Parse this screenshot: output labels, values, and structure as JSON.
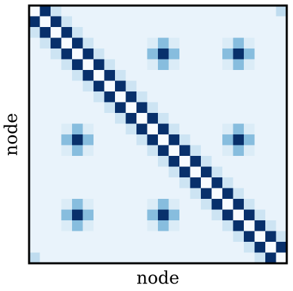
{
  "chart_data": {
    "type": "heatmap",
    "xlabel": "node",
    "ylabel": "node",
    "colormap": [
      "#f7fbff",
      "#6baed6",
      "#08306b"
    ],
    "zlim": [
      0,
      1
    ],
    "values": [
      [
        0,
        1,
        0.15,
        0.05,
        0.05,
        0.05,
        0.05,
        0.05,
        0.05,
        0.05,
        0.05,
        0.05,
        0.05,
        0.05,
        0.05,
        0.05,
        0.05,
        0.05,
        0.05,
        0.05,
        0.05,
        0.05,
        0.05,
        0.2
      ],
      [
        1,
        0,
        1,
        0.15,
        0.05,
        0.05,
        0.05,
        0.05,
        0.05,
        0.05,
        0.05,
        0.05,
        0.05,
        0.05,
        0.05,
        0.05,
        0.05,
        0.05,
        0.05,
        0.05,
        0.05,
        0.05,
        0.05,
        0.05
      ],
      [
        0.15,
        1,
        0,
        1,
        0.15,
        0.05,
        0.05,
        0.05,
        0.05,
        0.05,
        0.05,
        0.05,
        0.05,
        0.05,
        0.05,
        0.05,
        0.05,
        0.05,
        0.05,
        0.05,
        0.05,
        0.05,
        0.05,
        0.05
      ],
      [
        0.05,
        0.15,
        1,
        0,
        1,
        0.15,
        0.05,
        0.05,
        0.05,
        0.05,
        0.05,
        0.1,
        0.4,
        0.1,
        0.05,
        0.05,
        0.05,
        0.05,
        0.1,
        0.4,
        0.1,
        0.05,
        0.05,
        0.05
      ],
      [
        0.05,
        0.05,
        0.15,
        1,
        0,
        1,
        0.15,
        0.05,
        0.05,
        0.05,
        0.05,
        0.4,
        1,
        0.4,
        0.05,
        0.05,
        0.05,
        0.05,
        0.4,
        1,
        0.4,
        0.05,
        0.05,
        0.05
      ],
      [
        0.05,
        0.05,
        0.05,
        0.15,
        1,
        0,
        1,
        0.15,
        0.05,
        0.05,
        0.05,
        0.1,
        0.4,
        0.1,
        0.05,
        0.05,
        0.05,
        0.05,
        0.1,
        0.4,
        0.1,
        0.05,
        0.05,
        0.05
      ],
      [
        0.05,
        0.05,
        0.05,
        0.05,
        0.15,
        1,
        0,
        1,
        0.15,
        0.05,
        0.05,
        0.05,
        0.05,
        0.05,
        0.05,
        0.05,
        0.05,
        0.05,
        0.05,
        0.05,
        0.05,
        0.05,
        0.05,
        0.05
      ],
      [
        0.05,
        0.05,
        0.05,
        0.05,
        0.05,
        0.15,
        1,
        0,
        1,
        0.15,
        0.05,
        0.05,
        0.05,
        0.05,
        0.05,
        0.05,
        0.05,
        0.05,
        0.05,
        0.05,
        0.05,
        0.05,
        0.05,
        0.05
      ],
      [
        0.05,
        0.05,
        0.05,
        0.05,
        0.05,
        0.05,
        0.15,
        1,
        0,
        1,
        0.15,
        0.05,
        0.05,
        0.05,
        0.05,
        0.05,
        0.05,
        0.05,
        0.05,
        0.05,
        0.05,
        0.05,
        0.05,
        0.05
      ],
      [
        0.05,
        0.05,
        0.05,
        0.05,
        0.05,
        0.05,
        0.05,
        0.15,
        1,
        0,
        1,
        0.15,
        0.05,
        0.05,
        0.05,
        0.05,
        0.05,
        0.05,
        0.05,
        0.05,
        0.05,
        0.05,
        0.05,
        0.05
      ],
      [
        0.05,
        0.05,
        0.05,
        0.05,
        0.05,
        0.05,
        0.05,
        0.05,
        0.15,
        1,
        0,
        1,
        0.15,
        0.05,
        0.05,
        0.05,
        0.05,
        0.05,
        0.05,
        0.05,
        0.05,
        0.05,
        0.05,
        0.05
      ],
      [
        0.05,
        0.05,
        0.05,
        0.1,
        0.4,
        0.1,
        0.05,
        0.05,
        0.05,
        0.15,
        1,
        0,
        1,
        0.15,
        0.05,
        0.05,
        0.05,
        0.05,
        0.1,
        0.4,
        0.1,
        0.05,
        0.05,
        0.05
      ],
      [
        0.05,
        0.05,
        0.05,
        0.4,
        1,
        0.4,
        0.05,
        0.05,
        0.05,
        0.05,
        0.15,
        1,
        0,
        1,
        0.15,
        0.05,
        0.05,
        0.05,
        0.4,
        1,
        0.4,
        0.05,
        0.05,
        0.05
      ],
      [
        0.05,
        0.05,
        0.05,
        0.1,
        0.4,
        0.1,
        0.05,
        0.05,
        0.05,
        0.05,
        0.05,
        0.15,
        1,
        0,
        1,
        0.15,
        0.05,
        0.05,
        0.1,
        0.4,
        0.1,
        0.05,
        0.05,
        0.05
      ],
      [
        0.05,
        0.05,
        0.05,
        0.05,
        0.05,
        0.05,
        0.05,
        0.05,
        0.05,
        0.05,
        0.05,
        0.05,
        0.15,
        1,
        0,
        1,
        0.15,
        0.05,
        0.05,
        0.05,
        0.05,
        0.05,
        0.05,
        0.05
      ],
      [
        0.05,
        0.05,
        0.05,
        0.05,
        0.05,
        0.05,
        0.05,
        0.05,
        0.05,
        0.05,
        0.05,
        0.05,
        0.05,
        0.15,
        1,
        0,
        1,
        0.15,
        0.05,
        0.05,
        0.05,
        0.05,
        0.05,
        0.05
      ],
      [
        0.05,
        0.05,
        0.05,
        0.05,
        0.05,
        0.05,
        0.05,
        0.05,
        0.05,
        0.05,
        0.05,
        0.05,
        0.05,
        0.05,
        0.15,
        1,
        0,
        1,
        0.15,
        0.05,
        0.05,
        0.05,
        0.05,
        0.05
      ],
      [
        0.05,
        0.05,
        0.05,
        0.05,
        0.05,
        0.05,
        0.05,
        0.05,
        0.05,
        0.05,
        0.05,
        0.05,
        0.05,
        0.05,
        0.05,
        0.15,
        1,
        0,
        1,
        0.15,
        0.05,
        0.05,
        0.05,
        0.05
      ],
      [
        0.05,
        0.05,
        0.05,
        0.1,
        0.4,
        0.1,
        0.05,
        0.05,
        0.05,
        0.05,
        0.05,
        0.1,
        0.4,
        0.1,
        0.05,
        0.05,
        0.15,
        1,
        0,
        1,
        0.15,
        0.05,
        0.05,
        0.05
      ],
      [
        0.05,
        0.05,
        0.05,
        0.4,
        1,
        0.4,
        0.05,
        0.05,
        0.05,
        0.05,
        0.05,
        0.4,
        1,
        0.4,
        0.05,
        0.05,
        0.05,
        0.15,
        1,
        0,
        1,
        0.15,
        0.05,
        0.05
      ],
      [
        0.05,
        0.05,
        0.05,
        0.1,
        0.4,
        0.1,
        0.05,
        0.05,
        0.05,
        0.05,
        0.05,
        0.1,
        0.4,
        0.1,
        0.05,
        0.05,
        0.05,
        0.05,
        0.15,
        1,
        0,
        1,
        0.15,
        0.05
      ],
      [
        0.05,
        0.05,
        0.05,
        0.05,
        0.05,
        0.05,
        0.05,
        0.05,
        0.05,
        0.05,
        0.05,
        0.05,
        0.05,
        0.05,
        0.05,
        0.05,
        0.05,
        0.05,
        0.05,
        0.15,
        1,
        0,
        1,
        0.15
      ],
      [
        0.05,
        0.05,
        0.05,
        0.05,
        0.05,
        0.05,
        0.05,
        0.05,
        0.05,
        0.05,
        0.05,
        0.05,
        0.05,
        0.05,
        0.05,
        0.05,
        0.05,
        0.05,
        0.05,
        0.05,
        0.15,
        1,
        0,
        1
      ],
      [
        0.2,
        0.05,
        0.05,
        0.05,
        0.05,
        0.05,
        0.05,
        0.05,
        0.05,
        0.05,
        0.05,
        0.05,
        0.05,
        0.05,
        0.05,
        0.05,
        0.05,
        0.05,
        0.05,
        0.05,
        0.05,
        0.15,
        1,
        0
      ]
    ]
  }
}
